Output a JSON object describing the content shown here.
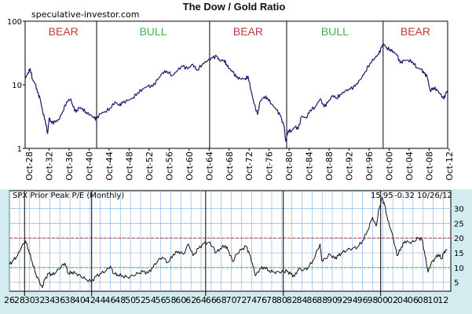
{
  "chart_data": [
    {
      "type": "line",
      "title": "The Dow / Gold  Ratio",
      "source": "speculative-investor.com",
      "scale": "log",
      "ylim": [
        1,
        100
      ],
      "y_ticks": [
        "1",
        "10",
        "100"
      ],
      "x_range": [
        1928,
        2012.5
      ],
      "x_tick_labels": [
        "Oct-28",
        "Oct-32",
        "Oct-36",
        "Oct-40",
        "Oct-44",
        "Oct-48",
        "Oct-52",
        "Oct-56",
        "Oct-60",
        "Oct-64",
        "Oct-68",
        "Oct-72",
        "Oct-76",
        "Oct-80",
        "Oct-84",
        "Oct-88",
        "Oct-92",
        "Oct-96",
        "Oct-00",
        "Oct-04",
        "Oct-08",
        "Oct-12"
      ],
      "x_tick_years": [
        1928.8,
        1932.8,
        1936.8,
        1940.8,
        1944.8,
        1948.8,
        1952.8,
        1956.8,
        1960.8,
        1964.8,
        1968.8,
        1972.8,
        1976.8,
        1980.8,
        1984.8,
        1988.8,
        1992.8,
        1996.8,
        2000.8,
        2004.8,
        2008.8,
        2012.8
      ],
      "phases": [
        {
          "label": "BEAR",
          "start": 1929.0,
          "end": 1942.3,
          "color": "#c0393b"
        },
        {
          "label": "BULL",
          "start": 1942.3,
          "end": 1964.9,
          "color": "#3fb24a"
        },
        {
          "label": "BEAR",
          "start": 1964.9,
          "end": 1980.3,
          "color": "#c0393b"
        },
        {
          "label": "BULL",
          "start": 1980.3,
          "end": 1999.6,
          "color": "#3fb24a"
        },
        {
          "label": "BEAR",
          "start": 1999.6,
          "end": 2012.5,
          "color": "#c0393b"
        }
      ],
      "line_color": "#1a1a6e",
      "series": [
        {
          "values": [
            [
              1928.0,
              12.5
            ],
            [
              1928.6,
              15.5
            ],
            [
              1929.0,
              18.0
            ],
            [
              1929.5,
              12.0
            ],
            [
              1930.0,
              10.5
            ],
            [
              1930.5,
              7.5
            ],
            [
              1931.0,
              6.0
            ],
            [
              1931.5,
              3.8
            ],
            [
              1932.0,
              2.8
            ],
            [
              1932.5,
              1.7
            ],
            [
              1932.8,
              3.0
            ],
            [
              1933.3,
              2.5
            ],
            [
              1934.0,
              2.6
            ],
            [
              1934.7,
              2.8
            ],
            [
              1935.5,
              3.8
            ],
            [
              1936.3,
              5.4
            ],
            [
              1937.1,
              6.0
            ],
            [
              1937.6,
              4.5
            ],
            [
              1938.2,
              3.7
            ],
            [
              1938.8,
              4.4
            ],
            [
              1939.5,
              4.2
            ],
            [
              1940.2,
              3.7
            ],
            [
              1941.0,
              3.4
            ],
            [
              1941.8,
              3.0
            ],
            [
              1942.3,
              2.9
            ],
            [
              1943.0,
              3.5
            ],
            [
              1944.0,
              3.8
            ],
            [
              1945.0,
              4.3
            ],
            [
              1946.0,
              5.4
            ],
            [
              1946.8,
              4.7
            ],
            [
              1947.5,
              5.2
            ],
            [
              1948.5,
              5.6
            ],
            [
              1949.5,
              6.2
            ],
            [
              1950.5,
              7.5
            ],
            [
              1951.5,
              8.6
            ],
            [
              1952.5,
              9.5
            ],
            [
              1953.5,
              9.4
            ],
            [
              1954.5,
              12.0
            ],
            [
              1955.5,
              15.5
            ],
            [
              1956.3,
              16.5
            ],
            [
              1957.5,
              14.0
            ],
            [
              1958.5,
              17.0
            ],
            [
              1959.5,
              19.5
            ],
            [
              1960.5,
              17.8
            ],
            [
              1961.5,
              21.0
            ],
            [
              1962.4,
              17.0
            ],
            [
              1963.5,
              21.5
            ],
            [
              1964.5,
              24.0
            ],
            [
              1965.5,
              26.5
            ],
            [
              1966.3,
              28.0
            ],
            [
              1966.9,
              24.0
            ],
            [
              1967.8,
              24.5
            ],
            [
              1968.3,
              21.0
            ],
            [
              1968.8,
              18.0
            ],
            [
              1969.5,
              16.0
            ],
            [
              1970.3,
              13.0
            ],
            [
              1971.0,
              12.5
            ],
            [
              1972.0,
              12.5
            ],
            [
              1972.6,
              13.5
            ],
            [
              1973.2,
              8.0
            ],
            [
              1973.8,
              5.0
            ],
            [
              1974.5,
              3.4
            ],
            [
              1975.0,
              5.5
            ],
            [
              1975.8,
              6.5
            ],
            [
              1976.5,
              6.2
            ],
            [
              1977.3,
              5.0
            ],
            [
              1978.3,
              4.0
            ],
            [
              1979.0,
              3.3
            ],
            [
              1979.8,
              2.2
            ],
            [
              1980.1,
              1.3
            ],
            [
              1980.6,
              1.9
            ],
            [
              1981.3,
              1.9
            ],
            [
              1982.0,
              2.2
            ],
            [
              1982.6,
              2.0
            ],
            [
              1983.3,
              3.2
            ],
            [
              1984.2,
              3.0
            ],
            [
              1985.0,
              4.0
            ],
            [
              1986.0,
              4.5
            ],
            [
              1987.0,
              6.0
            ],
            [
              1987.8,
              4.5
            ],
            [
              1988.5,
              5.2
            ],
            [
              1989.5,
              6.8
            ],
            [
              1990.3,
              6.2
            ],
            [
              1991.0,
              7.0
            ],
            [
              1992.0,
              8.0
            ],
            [
              1993.0,
              8.5
            ],
            [
              1994.0,
              9.5
            ],
            [
              1995.0,
              12.0
            ],
            [
              1996.0,
              16.0
            ],
            [
              1997.0,
              22.0
            ],
            [
              1998.0,
              27.0
            ],
            [
              1998.7,
              30.0
            ],
            [
              1999.3,
              39.0
            ],
            [
              1999.7,
              44.0
            ],
            [
              2000.3,
              38.0
            ],
            [
              2001.0,
              36.0
            ],
            [
              2001.7,
              33.0
            ],
            [
              2002.4,
              29.0
            ],
            [
              2003.0,
              22.0
            ],
            [
              2003.8,
              24.0
            ],
            [
              2004.6,
              24.5
            ],
            [
              2005.5,
              23.0
            ],
            [
              2006.4,
              18.5
            ],
            [
              2007.2,
              17.5
            ],
            [
              2007.8,
              15.0
            ],
            [
              2008.4,
              13.5
            ],
            [
              2009.0,
              8.0
            ],
            [
              2009.6,
              9.0
            ],
            [
              2010.3,
              8.5
            ],
            [
              2011.0,
              7.2
            ],
            [
              2011.7,
              6.0
            ],
            [
              2012.2,
              7.5
            ],
            [
              2012.5,
              8.0
            ]
          ]
        }
      ]
    },
    {
      "type": "line",
      "title": "SPX Prior Peak P/E (Monthly)",
      "annotation": {
        "last": "15.95",
        "change": "-0.32",
        "date": "10/26/12"
      },
      "ylim": [
        2,
        36
      ],
      "y_ticks": [
        "5",
        "10",
        "15",
        "20",
        "25",
        "30"
      ],
      "x_range": [
        1926,
        2013.5
      ],
      "x_tick_labels": [
        "26",
        "28",
        "30",
        "32",
        "34",
        "36",
        "38",
        "40",
        "42",
        "44",
        "46",
        "48",
        "50",
        "52",
        "54",
        "56",
        "58",
        "60",
        "62",
        "64",
        "66",
        "68",
        "70",
        "72",
        "74",
        "76",
        "78",
        "80",
        "82",
        "84",
        "86",
        "88",
        "90",
        "92",
        "94",
        "96",
        "98",
        "00",
        "02",
        "04",
        "06",
        "08",
        "10",
        "12"
      ],
      "reference_lines": [
        {
          "value": 20,
          "color": "#c0393b",
          "style": "dashed"
        },
        {
          "value": 10,
          "color": "#3fb24a",
          "style": "dashed"
        }
      ],
      "phase_dividers": [
        1929.0,
        1942.3,
        1964.9,
        1980.3,
        1999.6
      ],
      "series": [
        {
          "values": [
            [
              1926.0,
              11.0
            ],
            [
              1926.8,
              12.5
            ],
            [
              1927.6,
              14.0
            ],
            [
              1928.4,
              17.0
            ],
            [
              1929.2,
              19.0
            ],
            [
              1929.8,
              16.0
            ],
            [
              1930.5,
              12.0
            ],
            [
              1931.2,
              8.0
            ],
            [
              1932.0,
              5.0
            ],
            [
              1932.5,
              3.2
            ],
            [
              1933.0,
              6.0
            ],
            [
              1933.8,
              8.0
            ],
            [
              1934.5,
              7.5
            ],
            [
              1935.3,
              8.5
            ],
            [
              1936.3,
              10.5
            ],
            [
              1937.0,
              11.5
            ],
            [
              1937.7,
              8.0
            ],
            [
              1938.4,
              8.5
            ],
            [
              1939.3,
              8.0
            ],
            [
              1940.2,
              7.0
            ],
            [
              1941.0,
              6.2
            ],
            [
              1942.2,
              5.2
            ],
            [
              1943.2,
              7.0
            ],
            [
              1944.2,
              8.0
            ],
            [
              1945.2,
              9.0
            ],
            [
              1946.0,
              10.5
            ],
            [
              1946.7,
              8.0
            ],
            [
              1947.5,
              7.6
            ],
            [
              1948.5,
              7.2
            ],
            [
              1949.5,
              6.7
            ],
            [
              1950.5,
              7.3
            ],
            [
              1951.5,
              8.0
            ],
            [
              1952.5,
              8.6
            ],
            [
              1953.5,
              8.1
            ],
            [
              1954.5,
              10.2
            ],
            [
              1955.5,
              12.5
            ],
            [
              1956.3,
              13.5
            ],
            [
              1957.5,
              11.8
            ],
            [
              1958.5,
              14.5
            ],
            [
              1959.5,
              15.5
            ],
            [
              1960.5,
              14.5
            ],
            [
              1961.5,
              18.0
            ],
            [
              1962.4,
              14.0
            ],
            [
              1963.5,
              16.5
            ],
            [
              1964.5,
              18.0
            ],
            [
              1965.5,
              18.5
            ],
            [
              1966.4,
              17.0
            ],
            [
              1966.9,
              15.0
            ],
            [
              1967.8,
              16.5
            ],
            [
              1968.8,
              17.5
            ],
            [
              1969.5,
              15.5
            ],
            [
              1970.3,
              12.0
            ],
            [
              1971.0,
              14.5
            ],
            [
              1972.0,
              16.0
            ],
            [
              1972.9,
              17.2
            ],
            [
              1973.6,
              14.5
            ],
            [
              1974.3,
              10.5
            ],
            [
              1974.8,
              7.2
            ],
            [
              1975.6,
              9.5
            ],
            [
              1976.5,
              10.2
            ],
            [
              1977.5,
              9.0
            ],
            [
              1978.5,
              8.5
            ],
            [
              1979.5,
              8.5
            ],
            [
              1980.3,
              8.5
            ],
            [
              1981.0,
              8.8
            ],
            [
              1981.8,
              7.8
            ],
            [
              1982.5,
              7.0
            ],
            [
              1983.3,
              9.5
            ],
            [
              1984.3,
              9.2
            ],
            [
              1985.2,
              10.0
            ],
            [
              1986.2,
              12.5
            ],
            [
              1987.6,
              18.0
            ],
            [
              1987.9,
              12.5
            ],
            [
              1988.7,
              13.0
            ],
            [
              1989.5,
              14.5
            ],
            [
              1990.5,
              13.0
            ],
            [
              1991.2,
              14.0
            ],
            [
              1992.0,
              15.0
            ],
            [
              1993.0,
              16.0
            ],
            [
              1994.0,
              16.5
            ],
            [
              1995.0,
              17.0
            ],
            [
              1996.0,
              19.0
            ],
            [
              1997.0,
              22.5
            ],
            [
              1998.0,
              27.0
            ],
            [
              1998.7,
              24.0
            ],
            [
              1999.3,
              30.0
            ],
            [
              1999.9,
              33.5
            ],
            [
              2000.4,
              31.0
            ],
            [
              2001.0,
              26.0
            ],
            [
              2001.7,
              22.5
            ],
            [
              2002.5,
              17.0
            ],
            [
              2002.9,
              14.0
            ],
            [
              2003.7,
              17.0
            ],
            [
              2004.4,
              19.0
            ],
            [
              2005.3,
              18.5
            ],
            [
              2006.2,
              18.8
            ],
            [
              2007.0,
              20.0
            ],
            [
              2007.8,
              19.5
            ],
            [
              2008.4,
              14.0
            ],
            [
              2009.0,
              8.5
            ],
            [
              2009.6,
              11.5
            ],
            [
              2010.3,
              13.0
            ],
            [
              2011.0,
              14.5
            ],
            [
              2011.7,
              13.0
            ],
            [
              2012.2,
              15.5
            ],
            [
              2012.8,
              16.0
            ]
          ]
        }
      ]
    }
  ]
}
